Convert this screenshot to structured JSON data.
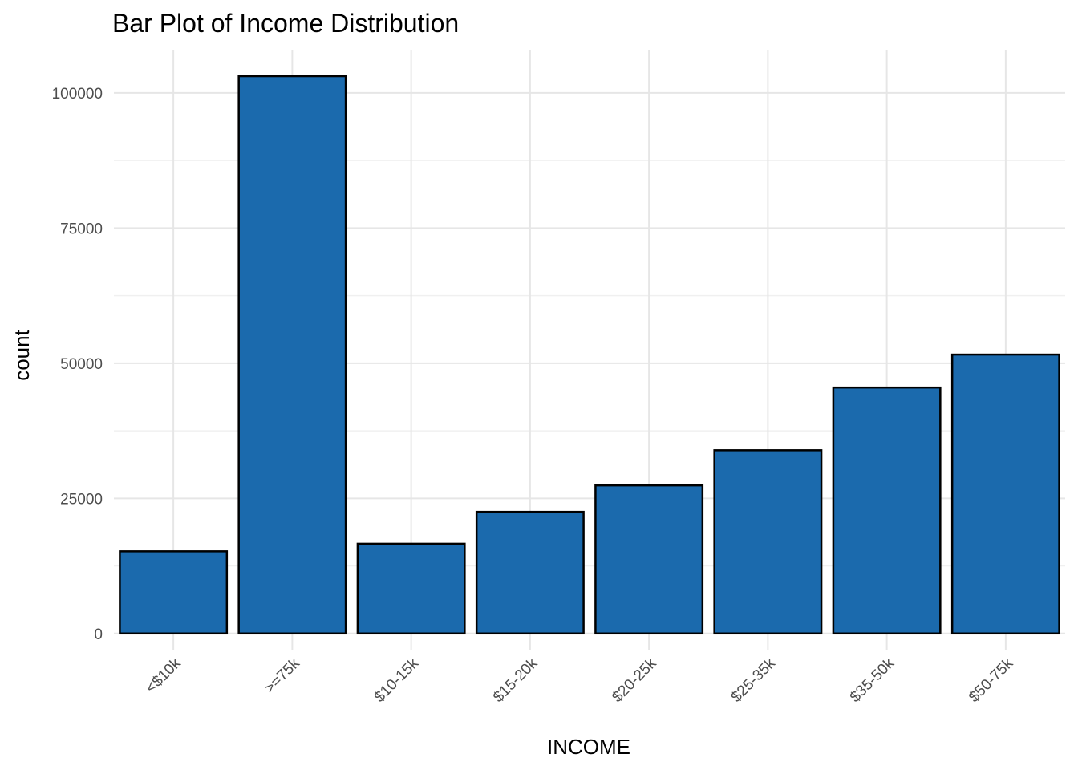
{
  "chart_data": {
    "type": "bar",
    "title": "Bar Plot of Income Distribution",
    "xlabel": "INCOME",
    "ylabel": "count",
    "categories": [
      "<$10k",
      ">=75k",
      "$10-15k",
      "$15-20k",
      "$20-25k",
      "$25-35k",
      "$35-50k",
      "$50-75k"
    ],
    "values": [
      15200,
      103100,
      16600,
      22500,
      27400,
      33900,
      45500,
      51600
    ],
    "ylim": [
      -3000,
      108000
    ],
    "yticks": [
      0,
      25000,
      50000,
      75000,
      100000
    ],
    "ytick_labels": [
      "0",
      "25000",
      "50000",
      "75000",
      "100000"
    ],
    "grid": true,
    "legend": "none",
    "bar_fill": "#1b6aad",
    "bar_outline": "#000000"
  }
}
